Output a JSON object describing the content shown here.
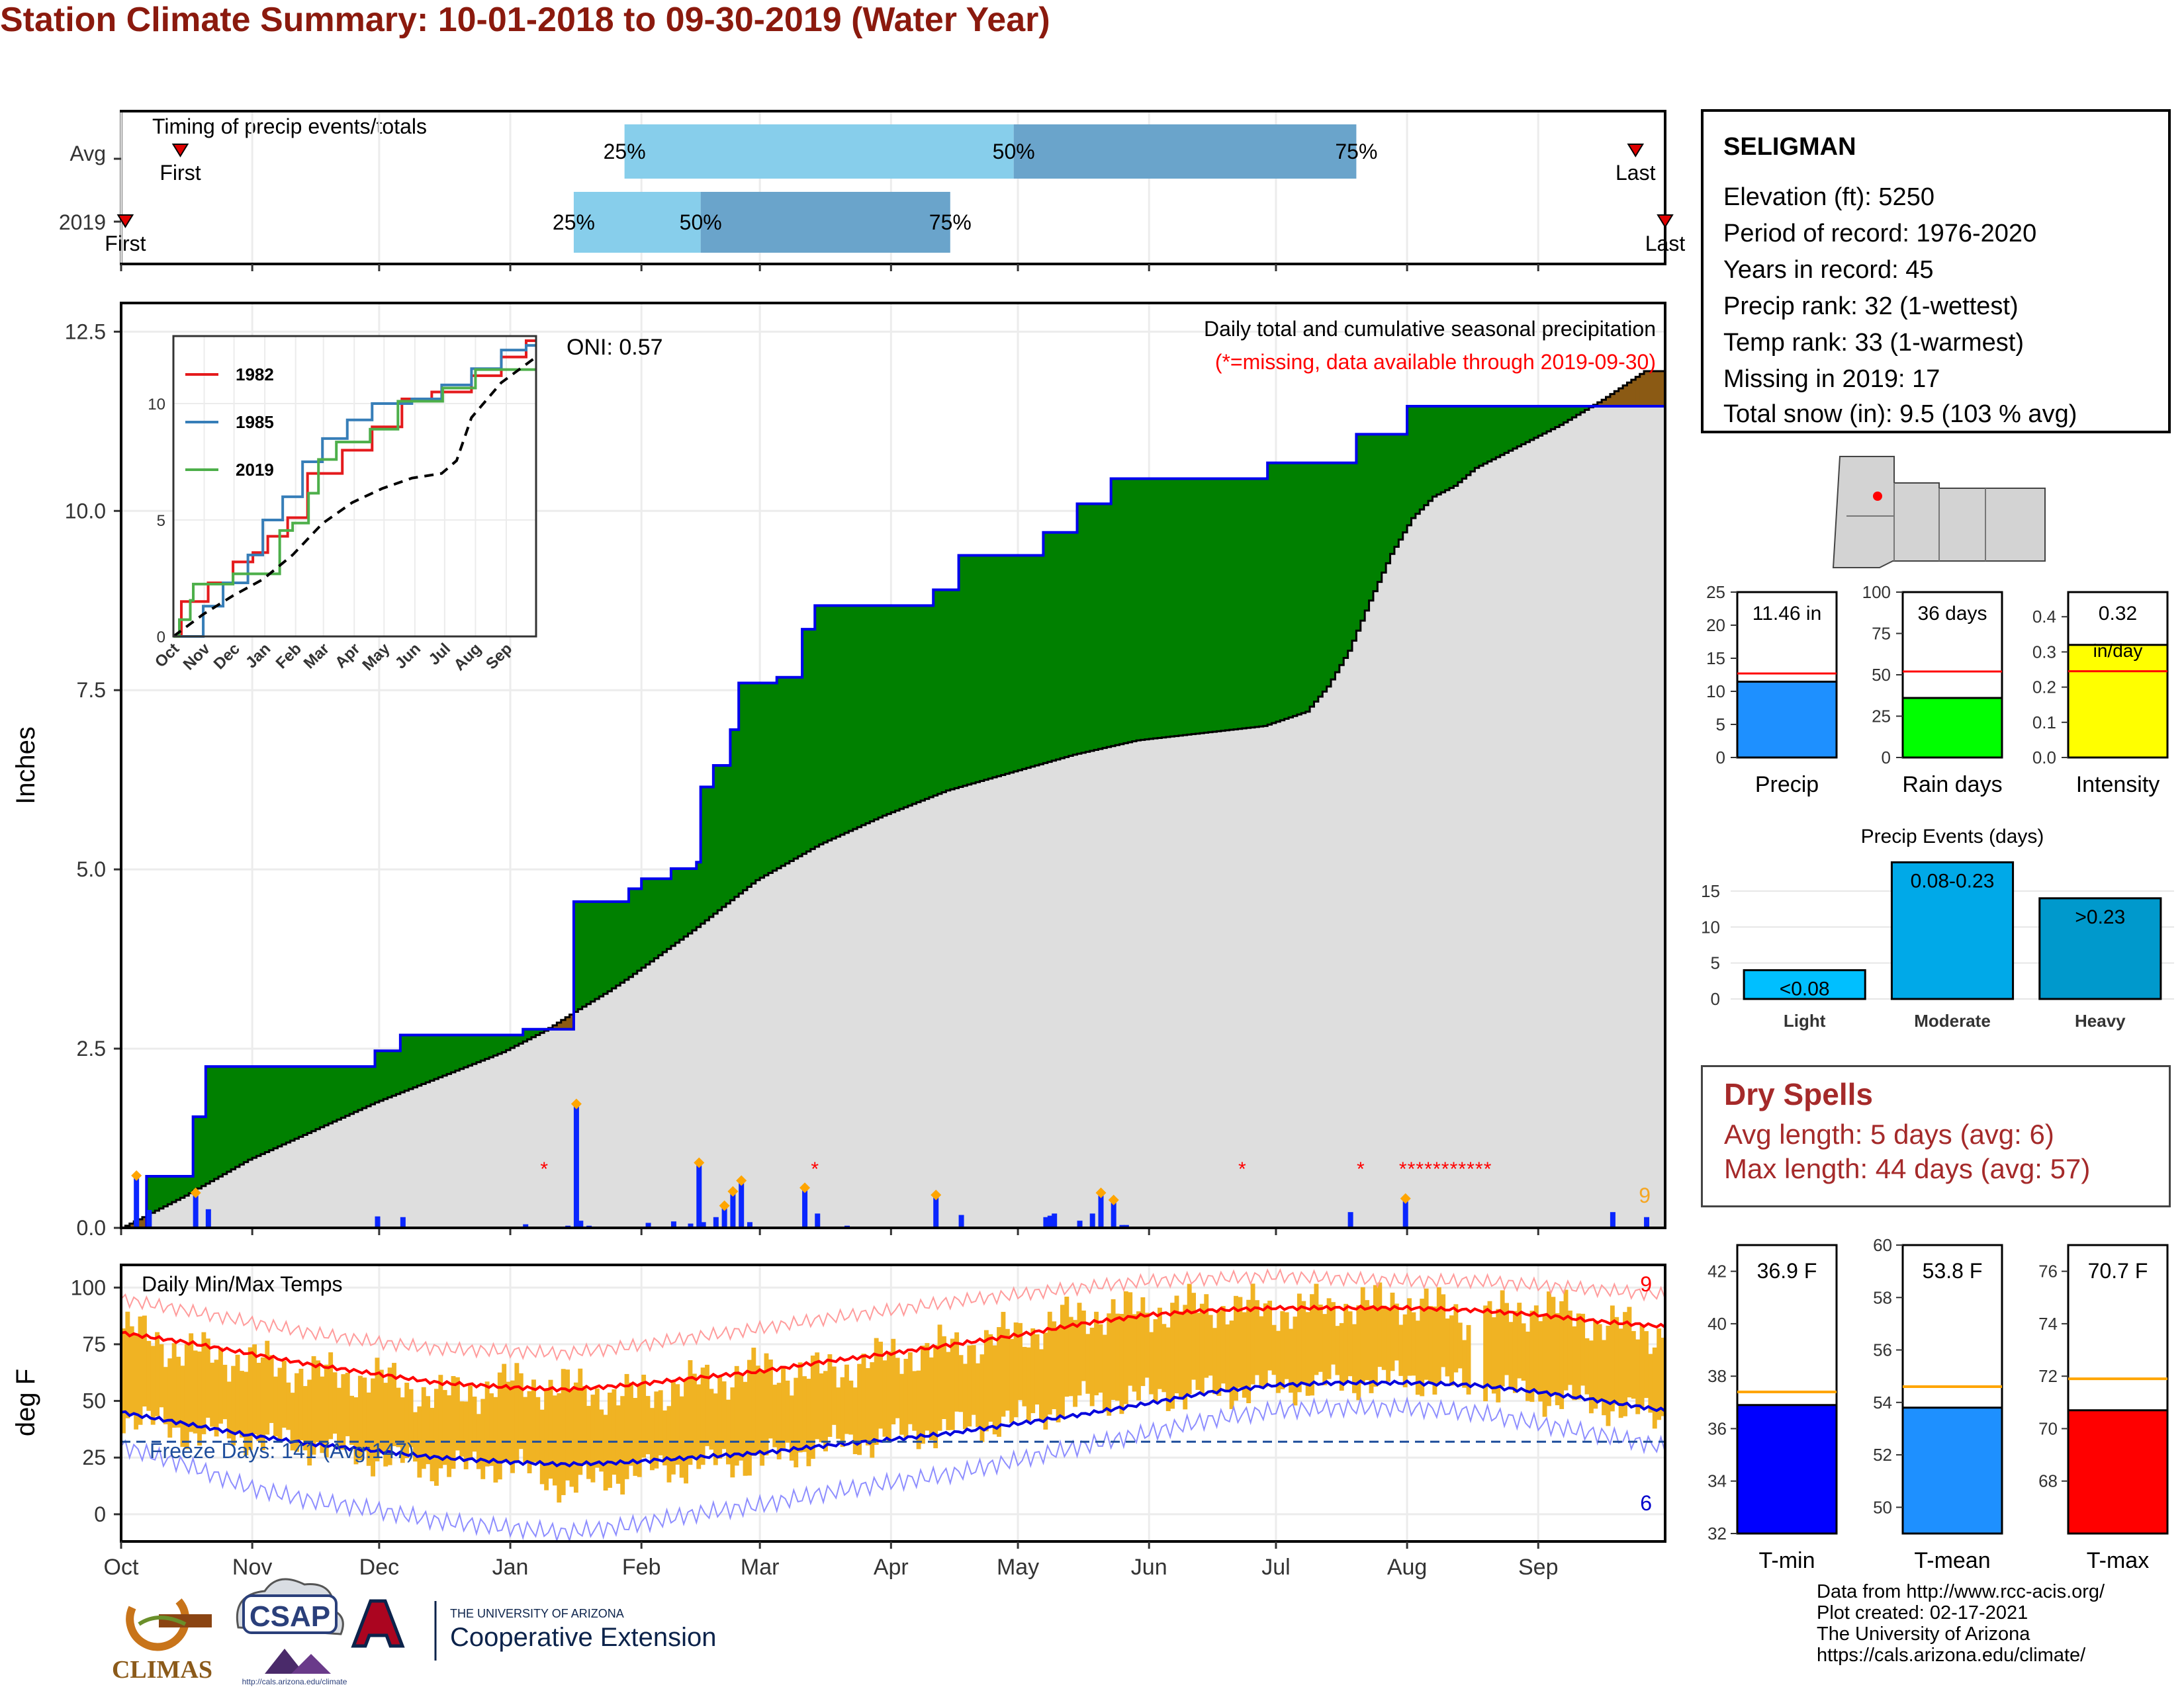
{
  "title": "Station Climate Summary: 10-01-2018 to 09-30-2019 (Water Year)",
  "station": {
    "name": "SELIGMAN",
    "lines": [
      "Elevation (ft): 5250",
      "Period of record: 1976-2020",
      "Years in record: 45",
      "Precip rank: 32 (1-wettest)",
      "Temp rank: 33 (1-warmest)",
      "Missing in 2019: 17",
      "Total snow (in): 9.5 (103 % avg)"
    ]
  },
  "timing": {
    "title": "Timing of precip events/totals",
    "rows": [
      {
        "label": "Avg",
        "first_label": "First",
        "last_label": "Last",
        "first_day": 14,
        "last_day": 358,
        "p25": 119,
        "p50": 211,
        "p75": 292
      },
      {
        "label": "2019",
        "first_label": "First",
        "last_label": "Last",
        "first_day": 1,
        "last_day": 365,
        "p25": 107,
        "p50": 137,
        "p75": 196
      }
    ],
    "pct_labels": [
      "25%",
      "50%",
      "75%"
    ]
  },
  "precip": {
    "ylabel": "Inches",
    "yticks": [
      0.0,
      2.5,
      5.0,
      7.5,
      10.0,
      12.5
    ],
    "ymax": 12.9,
    "oni": "ONI: 0.57",
    "legend1": "Daily total and cumulative seasonal precipitation",
    "legend2": "(*=missing, data available through 2019-09-30)",
    "corner_value": "9"
  },
  "inset": {
    "yticks": [
      "0",
      "5",
      "10"
    ],
    "xticks": [
      "Oct",
      "Nov",
      "Dec",
      "Jan",
      "Feb",
      "Mar",
      "Apr",
      "May",
      "Jun",
      "Jul",
      "Aug",
      "Sep"
    ],
    "series": [
      "1982",
      "1985",
      "2019"
    ],
    "colors": [
      "#e41a1c",
      "#377eb8",
      "#4daf4a"
    ]
  },
  "temps": {
    "title": "Daily Min/Max Temps",
    "ylabel": "deg F",
    "yticks": [
      0,
      25,
      50,
      75,
      100
    ],
    "freeze": "Freeze Days: 141 (Avg:147)",
    "corner_max": "9",
    "corner_min": "6",
    "xticks": [
      "Oct",
      "Nov",
      "Dec",
      "Jan",
      "Feb",
      "Mar",
      "Apr",
      "May",
      "Jun",
      "Jul",
      "Aug",
      "Sep"
    ]
  },
  "summary_bars": [
    {
      "label": "Precip",
      "value_text": "11.46 in",
      "value": 11.46,
      "avg": 12.7,
      "ymax": 25,
      "ticks": [
        "0",
        "5",
        "10",
        "15",
        "20",
        "25"
      ],
      "color": "#1e90ff"
    },
    {
      "label": "Rain days",
      "value_text": "36 days",
      "value": 36,
      "avg": 52,
      "ymax": 100,
      "ticks": [
        "0",
        "25",
        "50",
        "75",
        "100"
      ],
      "color": "#00ff00"
    },
    {
      "label": "Intensity",
      "value_text": "0.32",
      "value_text2": "in/day",
      "value": 0.32,
      "avg": 0.245,
      "ymax": 0.47,
      "ticks": [
        "0.0",
        "0.1",
        "0.2",
        "0.3",
        "0.4"
      ],
      "color": "#ffff00"
    }
  ],
  "events": {
    "title": "Precip Events (days)",
    "categories": [
      "Light",
      "Moderate",
      "Heavy"
    ],
    "values": [
      4,
      19,
      14
    ],
    "labels": [
      "<0.08",
      "0.08-0.23",
      ">0.23"
    ],
    "ticks": [
      "0",
      "5",
      "10",
      "15"
    ],
    "colors": [
      "#00bfff",
      "#00a9e8",
      "#0099cc"
    ]
  },
  "dry_spells": {
    "title": "Dry Spells",
    "avg": "Avg length: 5 days (avg: 6)",
    "max": "Max length: 44 days (avg: 57)"
  },
  "temp_bars": [
    {
      "label": "T-min",
      "value_text": "36.9 F",
      "value": 36.9,
      "avg": 37.4,
      "ymin": 32,
      "ymax": 43,
      "ticks": [
        32,
        34,
        36,
        38,
        40,
        42
      ],
      "color": "#0000ff"
    },
    {
      "label": "T-mean",
      "value_text": "53.8 F",
      "value": 53.8,
      "avg": 54.6,
      "ymin": 49,
      "ymax": 60,
      "ticks": [
        50,
        52,
        54,
        56,
        58,
        60
      ],
      "color": "#1e90ff"
    },
    {
      "label": "T-max",
      "value_text": "70.7 F",
      "value": 70.7,
      "avg": 71.9,
      "ymin": 66,
      "ymax": 77,
      "ticks": [
        68,
        70,
        72,
        74,
        76
      ],
      "color": "#ff0000"
    }
  ],
  "footer": [
    "Data from http://www.rcc-acis.org/",
    "Plot created: 02-17-2021",
    "The University of Arizona",
    "https://cals.arizona.edu/climate/"
  ],
  "logos": {
    "climas": "CLIMAS",
    "csap": "CSAP",
    "csap_url": "http://cals.arizona.edu/climate",
    "ua_line1": "THE UNIVERSITY OF ARIZONA",
    "ua_line2": "Cooperative Extension"
  },
  "chart_data": [
    {
      "type": "area",
      "title": "Daily total and cumulative seasonal precipitation",
      "ylabel": "Inches",
      "ylim": [
        0,
        12.9
      ],
      "x_unit": "day of water year (Oct 1 = 0)",
      "month_starts": [
        0,
        31,
        61,
        92,
        123,
        151,
        182,
        212,
        243,
        273,
        304,
        335
      ],
      "series": [
        {
          "name": "2019 cumulative",
          "x": [
            0,
            6,
            6,
            17,
            17,
            20,
            20,
            60,
            60,
            66,
            66,
            95,
            95,
            107,
            107,
            120,
            120,
            123,
            123,
            130,
            130,
            136,
            136,
            137,
            137,
            140,
            140,
            144,
            144,
            146,
            146,
            155,
            155,
            161,
            161,
            164,
            164,
            192,
            192,
            198,
            198,
            218,
            218,
            226,
            226,
            234,
            234,
            271,
            271,
            292,
            292,
            304,
            304,
            360
          ],
          "y": [
            0,
            0,
            0.72,
            0.72,
            1.55,
            1.55,
            2.25,
            2.25,
            2.47,
            2.47,
            2.69,
            2.69,
            2.77,
            2.77,
            4.55,
            4.55,
            4.73,
            4.73,
            4.87,
            4.87,
            5.01,
            5.01,
            5.1,
            5.1,
            6.15,
            6.15,
            6.45,
            6.45,
            6.95,
            6.95,
            7.6,
            7.6,
            7.68,
            7.68,
            8.35,
            8.35,
            8.68,
            8.68,
            8.9,
            8.9,
            9.38,
            9.38,
            9.7,
            9.7,
            10.1,
            10.1,
            10.45,
            10.45,
            10.67,
            10.67,
            11.07,
            11.07,
            11.46,
            11.46
          ]
        },
        {
          "name": "Average cumulative",
          "x": [
            0,
            15,
            30,
            45,
            60,
            75,
            90,
            100,
            108,
            115,
            120,
            135,
            150,
            165,
            180,
            195,
            210,
            225,
            240,
            255,
            270,
            280,
            285,
            290,
            295,
            300,
            305,
            310,
            315,
            320,
            330,
            340,
            350,
            360
          ],
          "y": [
            0,
            0.45,
            0.95,
            1.35,
            1.75,
            2.1,
            2.45,
            2.75,
            3.05,
            3.3,
            3.5,
            4.15,
            4.85,
            5.35,
            5.75,
            6.1,
            6.35,
            6.6,
            6.8,
            6.9,
            7.0,
            7.2,
            7.55,
            8.05,
            8.75,
            9.4,
            9.9,
            10.2,
            10.35,
            10.6,
            10.9,
            11.2,
            11.55,
            11.95
          ]
        }
      ],
      "daily_x": [
        3,
        6,
        17,
        20,
        60,
        66,
        95,
        105,
        107,
        108,
        110,
        124,
        130,
        134,
        136,
        137,
        140,
        142,
        144,
        146,
        148,
        161,
        164,
        171,
        192,
        198,
        218,
        219,
        220,
        226,
        229,
        231,
        234,
        236,
        237,
        290,
        303,
        352,
        360
      ],
      "daily_y": [
        0.72,
        0.25,
        0.48,
        0.26,
        0.16,
        0.15,
        0.05,
        0.03,
        1.72,
        0.1,
        0.03,
        0.07,
        0.09,
        0.06,
        0.9,
        0.08,
        0.15,
        0.3,
        0.5,
        0.65,
        0.08,
        0.55,
        0.2,
        0.03,
        0.45,
        0.18,
        0.15,
        0.17,
        0.2,
        0.1,
        0.2,
        0.48,
        0.38,
        0.04,
        0.04,
        0.22,
        0.4,
        0.22,
        0.15
      ],
      "missing_x": [
        100,
        164,
        265,
        293,
        303,
        305,
        307,
        309,
        311,
        313,
        315,
        317,
        319,
        321,
        323
      ]
    },
    {
      "type": "line",
      "title": "",
      "series": [
        {
          "name": "1982",
          "x": [
            0,
            8,
            8,
            35,
            35,
            60,
            60,
            80,
            80,
            95,
            95,
            115,
            115,
            135,
            135,
            170,
            170,
            200,
            200,
            230,
            230,
            260,
            260,
            300,
            300,
            330,
            330,
            355,
            355,
            365
          ],
          "y": [
            0,
            0,
            1.5,
            1.5,
            2.3,
            2.3,
            3.2,
            3.2,
            3.6,
            3.6,
            4.3,
            4.3,
            5.1,
            5.1,
            7.0,
            7.0,
            8.0,
            8.0,
            9.0,
            9.0,
            10.2,
            10.2,
            10.5,
            10.5,
            11.2,
            11.2,
            12.0,
            12.0,
            12.7,
            12.7
          ]
        },
        {
          "name": "1985",
          "x": [
            0,
            30,
            30,
            50,
            50,
            75,
            75,
            90,
            90,
            110,
            110,
            130,
            130,
            150,
            150,
            175,
            175,
            200,
            200,
            240,
            240,
            270,
            270,
            300,
            300,
            330,
            330,
            355,
            355,
            365
          ],
          "y": [
            0,
            0,
            1.3,
            1.3,
            2.3,
            2.3,
            3.5,
            3.5,
            5.0,
            5.0,
            6.0,
            6.0,
            7.5,
            7.5,
            8.5,
            8.5,
            9.3,
            9.3,
            10.0,
            10.0,
            10.2,
            10.2,
            10.8,
            10.8,
            11.5,
            11.5,
            12.3,
            12.3,
            12.5,
            12.5
          ]
        },
        {
          "name": "2019",
          "x": [
            0,
            6,
            6,
            17,
            17,
            20,
            20,
            60,
            60,
            107,
            107,
            120,
            120,
            136,
            136,
            146,
            146,
            164,
            164,
            198,
            198,
            226,
            226,
            271,
            271,
            304,
            304,
            365
          ],
          "y": [
            0,
            0,
            0.72,
            0.72,
            1.55,
            1.55,
            2.25,
            2.25,
            2.69,
            2.69,
            4.55,
            4.55,
            4.87,
            4.87,
            6.15,
            6.15,
            7.6,
            7.6,
            8.35,
            8.35,
            8.9,
            8.9,
            10.1,
            10.1,
            10.67,
            10.67,
            11.46,
            11.46
          ]
        },
        {
          "name": "Average",
          "x": [
            0,
            30,
            60,
            90,
            120,
            150,
            180,
            210,
            240,
            270,
            285,
            300,
            330,
            365
          ],
          "y": [
            0,
            0.95,
            1.75,
            2.45,
            3.5,
            4.85,
            5.75,
            6.35,
            6.8,
            7.0,
            7.55,
            9.4,
            10.9,
            12.0
          ]
        }
      ],
      "xticks": [
        "Oct",
        "Nov",
        "Dec",
        "Jan",
        "Feb",
        "Mar",
        "Apr",
        "May",
        "Jun",
        "Jul",
        "Aug",
        "Sep"
      ],
      "ylim": [
        0,
        12.9
      ]
    },
    {
      "type": "bar",
      "title": "Daily Min/Max Temps",
      "ylabel": "deg F",
      "ylim": [
        -12,
        110
      ],
      "x": [
        0,
        15,
        30,
        45,
        60,
        75,
        92,
        105,
        120,
        135,
        151,
        165,
        182,
        197,
        212,
        227,
        243,
        258,
        273,
        288,
        304,
        320,
        335,
        350,
        364
      ],
      "avg_max": [
        80,
        76,
        71,
        66,
        62,
        58,
        56,
        55,
        57,
        60,
        63,
        67,
        71,
        75,
        79,
        84,
        88,
        90,
        91,
        91,
        91,
        90,
        88,
        85,
        83
      ],
      "avg_min": [
        45,
        40,
        35,
        31,
        28,
        25,
        23,
        22,
        23,
        25,
        27,
        30,
        33,
        36,
        40,
        44,
        49,
        54,
        57,
        58,
        58,
        57,
        54,
        50,
        46
      ],
      "record_high": [
        95,
        90,
        85,
        80,
        76,
        73,
        72,
        71,
        74,
        78,
        82,
        86,
        90,
        94,
        97,
        100,
        103,
        104,
        105,
        104,
        103,
        103,
        101,
        99,
        97
      ],
      "record_low": [
        30,
        22,
        12,
        6,
        2,
        -3,
        -6,
        -8,
        -5,
        0,
        4,
        9,
        14,
        18,
        24,
        30,
        36,
        42,
        46,
        47,
        47,
        45,
        40,
        35,
        30
      ],
      "obs_max": [
        82,
        72,
        68,
        62,
        60,
        52,
        58,
        56,
        52,
        58,
        64,
        62,
        70,
        74,
        80,
        88,
        90,
        92,
        90,
        92,
        94,
        86,
        92,
        84,
        80
      ],
      "obs_min": [
        44,
        36,
        34,
        30,
        25,
        20,
        22,
        12,
        18,
        22,
        24,
        30,
        34,
        38,
        42,
        50,
        52,
        54,
        56,
        58,
        60,
        56,
        52,
        48,
        42
      ],
      "freeze_line": 32
    }
  ]
}
